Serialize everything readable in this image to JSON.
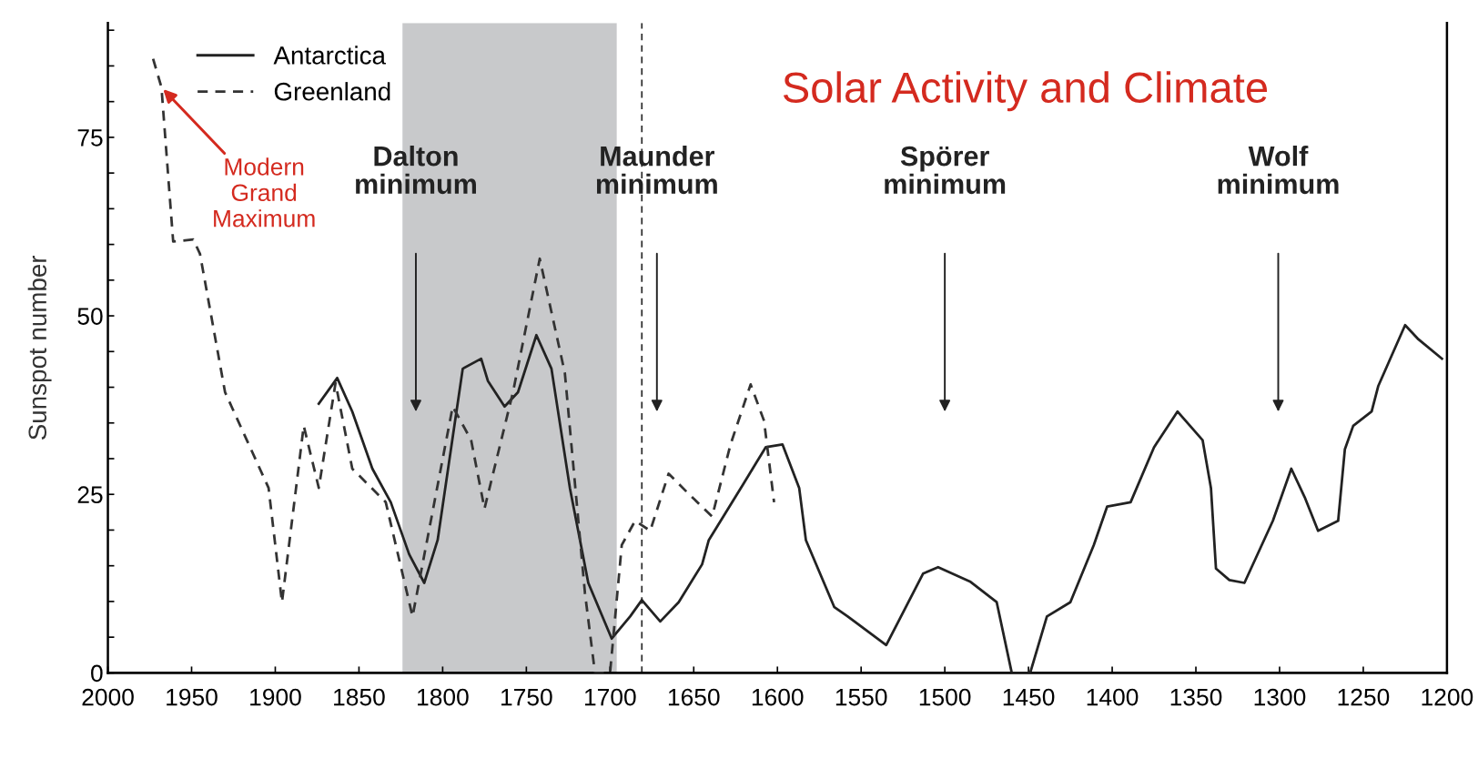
{
  "chart_data": {
    "type": "line",
    "title": "Solar Activity and Climate",
    "ylabel": "Sunspot number",
    "xlim": [
      2000,
      1200
    ],
    "xticks": [
      2000,
      1950,
      1900,
      1850,
      1800,
      1750,
      1700,
      1650,
      1600,
      1550,
      1500,
      1450,
      1400,
      1350,
      1300,
      1250,
      1200
    ],
    "ylim": [
      0,
      91
    ],
    "yticks": [
      0,
      {
        "value": 5,
        "label": null
      },
      {
        "value": 10,
        "label": null
      },
      {
        "value": 15,
        "label": null
      },
      {
        "value": 20,
        "label": null
      },
      25,
      {
        "value": 30,
        "label": null
      },
      {
        "value": 35,
        "label": null
      },
      {
        "value": 40,
        "label": null
      },
      {
        "value": 45,
        "label": null
      },
      50,
      {
        "value": 55,
        "label": null
      },
      {
        "value": 60,
        "label": null
      },
      {
        "value": 65,
        "label": null
      },
      {
        "value": 70,
        "label": null
      },
      75,
      {
        "value": 80,
        "label": null
      },
      {
        "value": 85,
        "label": null
      },
      {
        "value": 90,
        "label": null
      }
    ],
    "grid": false,
    "legend": "top left",
    "series": [
      {
        "name": "Antarctica",
        "color": "#222222",
        "line_style": "solid",
        "x": [
          1874,
          1863,
          1854,
          1842,
          1831,
          1820,
          1811,
          1803,
          1788,
          1777,
          1773,
          1763,
          1755,
          1744,
          1735,
          1724,
          1713,
          1699,
          1688,
          1681,
          1670,
          1659,
          1645,
          1641,
          1620,
          1607,
          1597,
          1587,
          1583,
          1566,
          1558,
          1535,
          1513,
          1504,
          1485,
          1469,
          1460,
          1449,
          1439,
          1425,
          1411,
          1403,
          1389,
          1375,
          1361,
          1346,
          1341,
          1338,
          1330,
          1321,
          1304,
          1293,
          1285,
          1277,
          1265,
          1261,
          1256,
          1245,
          1241,
          1225,
          1217,
          1203
        ],
        "values": [
          37.7,
          41.3,
          36.6,
          28.6,
          23.9,
          16.6,
          12.6,
          18.6,
          42.6,
          44,
          40.9,
          37.3,
          39.3,
          47.3,
          42.6,
          25.9,
          12.6,
          4.8,
          7.9,
          10.2,
          7.2,
          9.9,
          15.2,
          18.6,
          26.6,
          31.6,
          32,
          25.9,
          18.6,
          9.2,
          7.9,
          3.9,
          13.9,
          14.8,
          12.8,
          9.9,
          0,
          0,
          7.9,
          9.9,
          17.9,
          23.3,
          23.9,
          31.6,
          36.6,
          32.6,
          25.9,
          14.6,
          13,
          12.6,
          21.3,
          28.6,
          24.6,
          19.9,
          21.3,
          31.3,
          34.6,
          36.6,
          40.2,
          48.7,
          46.7,
          44
        ]
      },
      {
        "name": "Greenland",
        "color": "#333333",
        "line_style": "dashed",
        "x": [
          1973,
          1968,
          1961,
          1949,
          1945,
          1930,
          1917,
          1904,
          1896,
          1883,
          1874,
          1864,
          1854,
          1834,
          1818,
          1794,
          1783,
          1775,
          1758,
          1742,
          1727,
          1715,
          1709,
          1700,
          1693,
          1685,
          1676,
          1665,
          1654,
          1639,
          1628,
          1616,
          1608,
          1602
        ],
        "values": [
          86,
          82,
          60.4,
          60.7,
          58.7,
          39.3,
          32.6,
          25.9,
          9.9,
          34.6,
          25.9,
          40.6,
          28.6,
          23.9,
          7.9,
          37.3,
          32.6,
          23,
          39.3,
          58,
          42,
          11.2,
          0,
          0,
          17.9,
          21.3,
          19.9,
          27.9,
          25.3,
          21.9,
          32,
          40.4,
          35.3,
          23.9
        ]
      }
    ],
    "bands": [
      {
        "axis": "x",
        "from": 1824,
        "to": 1696,
        "color": "#c8c9cb"
      }
    ],
    "ref_lines": [
      {
        "axis": "x",
        "value": 1681,
        "line_style": "dashed",
        "color": "#333333"
      }
    ],
    "annotations": [
      {
        "text": "Modern\nGrand\nMaximum",
        "x": 1968,
        "y": 82
      },
      "Dalton\nminimum",
      "Maunder\nminimum",
      "Spörer\nminimum",
      "Wolf\nminimum"
    ]
  }
}
